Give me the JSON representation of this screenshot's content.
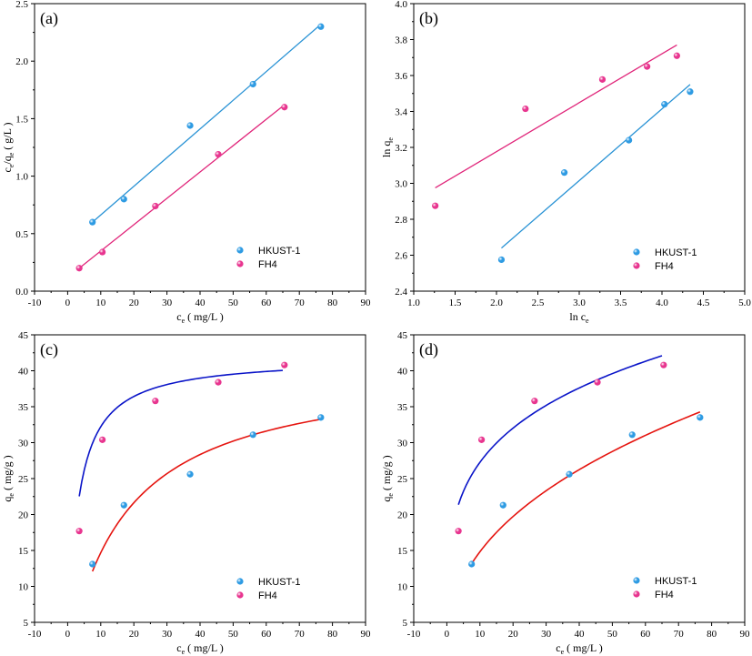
{
  "colors": {
    "hkust_point": "#2e9be3",
    "fh4_point": "#e8358f",
    "fit_blue_linear": "#2a93d5",
    "fit_pink_linear": "#e0257a",
    "fit_blue_curve": "#0a14c8",
    "fit_red_curve": "#e5140f"
  },
  "chart_data": [
    {
      "type": "scatter",
      "panel": "(a)",
      "xlabel_main": "c",
      "xlabel_sub": "e",
      "xlabel_rest": " ( mg/L )",
      "ylabel_parts": [
        "c",
        "e",
        "/q",
        "e",
        " ( g/L )"
      ],
      "xlim": [
        -10,
        90
      ],
      "ylim": [
        0,
        2.5
      ],
      "xticks": [
        "-10",
        "0",
        "10",
        "20",
        "30",
        "40",
        "50",
        "60",
        "70",
        "80",
        "90"
      ],
      "yticks": [
        "0.0",
        "0.5",
        "1.0",
        "1.5",
        "2.0",
        "2.5"
      ],
      "legend": [
        "HKUST-1",
        "FH4"
      ],
      "series": [
        {
          "name": "HKUST-1",
          "x": [
            7.5,
            17,
            37,
            56,
            76.5
          ],
          "y": [
            0.6,
            0.8,
            1.44,
            1.8,
            2.3
          ],
          "fit": {
            "kind": "linear",
            "x": [
              7.5,
              76.5
            ],
            "y": [
              0.6,
              2.32
            ]
          }
        },
        {
          "name": "FH4",
          "x": [
            3.5,
            10.5,
            26.5,
            45.5,
            65.5
          ],
          "y": [
            0.2,
            0.34,
            0.74,
            1.19,
            1.6
          ],
          "fit": {
            "kind": "linear",
            "x": [
              3.5,
              65.5
            ],
            "y": [
              0.2,
              1.62
            ]
          }
        }
      ]
    },
    {
      "type": "scatter",
      "panel": "(b)",
      "xlabel_main": "ln c",
      "xlabel_sub": "e",
      "xlabel_rest": "",
      "ylabel_parts": [
        "ln q",
        "e"
      ],
      "xlim": [
        1.0,
        5.0
      ],
      "ylim": [
        2.4,
        4.0
      ],
      "xticks": [
        "1.0",
        "1.5",
        "2.0",
        "2.5",
        "3.0",
        "3.5",
        "4.0",
        "4.5",
        "5.0"
      ],
      "yticks": [
        "2.4",
        "2.6",
        "2.8",
        "3.0",
        "3.2",
        "3.4",
        "3.6",
        "3.8",
        "4.0"
      ],
      "legend": [
        "HKUST-1",
        "FH4"
      ],
      "series": [
        {
          "name": "HKUST-1",
          "x": [
            2.06,
            2.82,
            3.6,
            4.03,
            4.34
          ],
          "y": [
            2.575,
            3.06,
            3.24,
            3.44,
            3.51
          ],
          "fit": {
            "kind": "linear",
            "x": [
              2.06,
              4.34
            ],
            "y": [
              2.64,
              3.55
            ]
          }
        },
        {
          "name": "FH4",
          "x": [
            1.26,
            2.35,
            3.28,
            3.82,
            4.18
          ],
          "y": [
            2.875,
            3.415,
            3.578,
            3.65,
            3.71
          ],
          "fit": {
            "kind": "linear",
            "x": [
              1.26,
              4.18
            ],
            "y": [
              2.975,
              3.77
            ]
          }
        }
      ]
    },
    {
      "type": "scatter",
      "panel": "(c)",
      "xlabel_main": "c",
      "xlabel_sub": "e",
      "xlabel_rest": " ( mg/L )",
      "ylabel_parts": [
        "q",
        "e",
        " ( mg/g )"
      ],
      "xlim": [
        -10,
        90
      ],
      "ylim": [
        5,
        45
      ],
      "xticks": [
        "-10",
        "0",
        "10",
        "20",
        "30",
        "40",
        "50",
        "60",
        "70",
        "80",
        "90"
      ],
      "yticks": [
        "5",
        "10",
        "15",
        "20",
        "25",
        "30",
        "35",
        "40",
        "45"
      ],
      "legend": [
        "HKUST-1",
        "FH4"
      ],
      "series": [
        {
          "name": "HKUST-1",
          "x": [
            7.5,
            17,
            37,
            56,
            76.5
          ],
          "y": [
            13.1,
            21.3,
            25.6,
            31.1,
            33.5
          ],
          "fit": {
            "kind": "langmuir",
            "qm": 41.06,
            "kl": 0.0557,
            "from": 7.5,
            "to": 76.5,
            "color_key": "fit_red_curve"
          }
        },
        {
          "name": "FH4",
          "x": [
            3.5,
            10.5,
            26.5,
            45.5,
            65.5
          ],
          "y": [
            17.7,
            30.4,
            35.8,
            38.4,
            40.8
          ],
          "fit": {
            "kind": "langmuir",
            "qm": 41.9,
            "kl": 0.3326,
            "from": 3.5,
            "to": 65,
            "color_key": "fit_blue_curve"
          }
        }
      ]
    },
    {
      "type": "scatter",
      "panel": "(d)",
      "xlabel_main": "c",
      "xlabel_sub": "e",
      "xlabel_rest": " ( mg/L )",
      "ylabel_parts": [
        "q",
        "e",
        " ( mg/g )"
      ],
      "xlim": [
        -10,
        90
      ],
      "ylim": [
        5,
        45
      ],
      "xticks": [
        "-10",
        "0",
        "10",
        "20",
        "30",
        "40",
        "50",
        "60",
        "70",
        "80",
        "90"
      ],
      "yticks": [
        "5",
        "10",
        "15",
        "20",
        "25",
        "30",
        "35",
        "40",
        "45"
      ],
      "legend": [
        "HKUST-1",
        "FH4"
      ],
      "series": [
        {
          "name": "HKUST-1",
          "x": [
            7.5,
            17,
            37,
            56,
            76.5
          ],
          "y": [
            13.1,
            21.3,
            25.6,
            31.1,
            33.5
          ],
          "fit": {
            "kind": "freundlich",
            "kf": 5.74,
            "n": 0.412,
            "from": 7.5,
            "to": 76.5,
            "color_key": "fit_red_curve"
          }
        },
        {
          "name": "FH4",
          "x": [
            3.5,
            10.5,
            26.5,
            45.5,
            65.5
          ],
          "y": [
            17.7,
            30.4,
            35.8,
            38.4,
            40.8
          ],
          "fit": {
            "kind": "freundlich",
            "kf": 15.98,
            "n": 0.232,
            "from": 3.5,
            "to": 65,
            "color_key": "fit_blue_curve"
          }
        }
      ]
    }
  ]
}
